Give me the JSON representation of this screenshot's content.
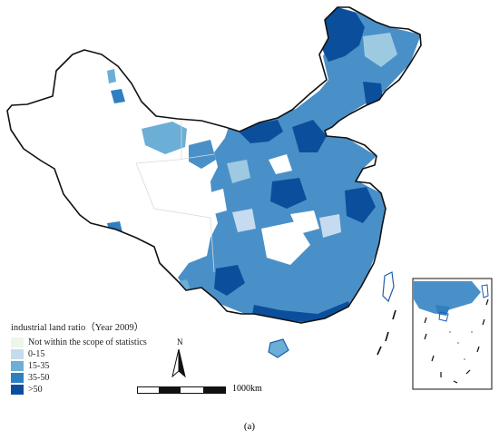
{
  "legend": {
    "title": "industrial land ratio（Year 2009）",
    "items": [
      {
        "label": "Not within the scope of statistics",
        "color": "#eef5e9"
      },
      {
        "label": "0-15",
        "color": "#c6dbef"
      },
      {
        "label": "15-35",
        "color": "#6baed6"
      },
      {
        "label": "35-50",
        "color": "#2f7fc1"
      },
      {
        "label": ">50",
        "color": "#0b4f9c"
      }
    ]
  },
  "north_label": "N",
  "scale_label": "1000km",
  "caption": "(a)",
  "colors": {
    "boundary": "#111111",
    "no_data_fill": "#ffffff",
    "province_lines": "#d9d9d9"
  }
}
